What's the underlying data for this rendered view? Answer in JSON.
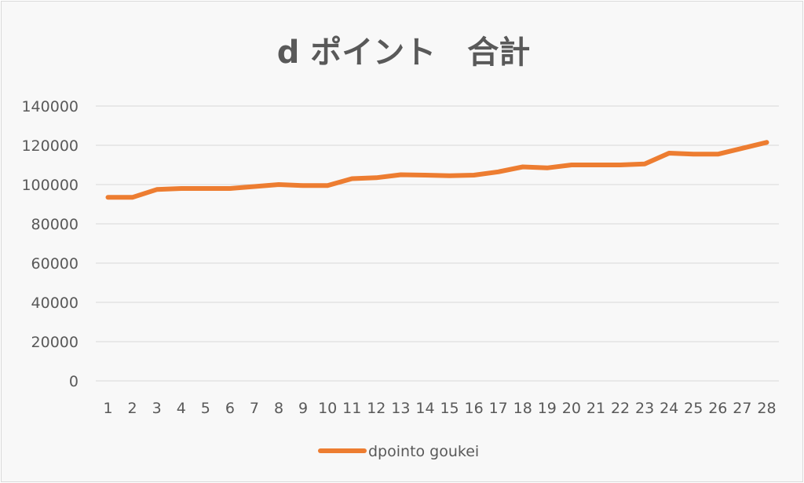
{
  "chart_data": {
    "type": "line",
    "title": "d ポイント　合計",
    "xlabel": "",
    "ylabel": "",
    "x": [
      1,
      2,
      3,
      4,
      5,
      6,
      7,
      8,
      9,
      10,
      11,
      12,
      13,
      14,
      15,
      16,
      17,
      18,
      19,
      20,
      21,
      22,
      23,
      24,
      25,
      26,
      27,
      28
    ],
    "ylim": [
      0,
      140000
    ],
    "yticks": [
      0,
      20000,
      40000,
      60000,
      80000,
      100000,
      120000,
      140000
    ],
    "grid": true,
    "legend_position": "bottom",
    "series": [
      {
        "name": "dpointo goukei",
        "color": "#ed7d31",
        "values": [
          93500,
          93500,
          97500,
          98000,
          98000,
          98000,
          99000,
          100000,
          99500,
          99500,
          103000,
          103500,
          105000,
          104800,
          104500,
          104800,
          106500,
          109000,
          108500,
          110000,
          110000,
          110000,
          110500,
          116000,
          115500,
          115500,
          118500,
          121500
        ]
      }
    ]
  }
}
